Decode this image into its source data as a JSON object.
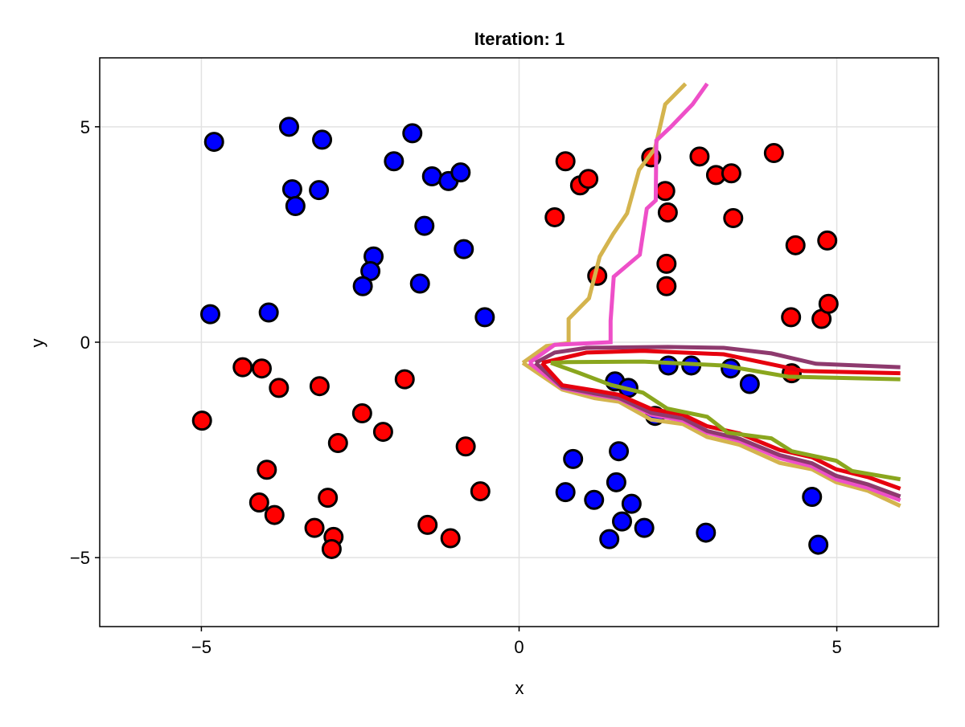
{
  "chart_data": {
    "type": "scatter",
    "title": "Iteration: 1",
    "xlabel": "x",
    "ylabel": "y",
    "xlim": [
      -6.6,
      6.6
    ],
    "ylim": [
      -6.6,
      6.6
    ],
    "xticks": [
      {
        "v": -5,
        "label": "−5"
      },
      {
        "v": 0,
        "label": "0"
      },
      {
        "v": 5,
        "label": "5"
      }
    ],
    "yticks": [
      {
        "v": -5,
        "label": "−5"
      },
      {
        "v": 0,
        "label": "0"
      },
      {
        "v": 5,
        "label": "5"
      }
    ],
    "grid": true,
    "point_series": [
      {
        "color": "#0000ff",
        "points": [
          [
            -4.8,
            4.65
          ],
          [
            -3.62,
            5.0
          ],
          [
            -3.1,
            4.7
          ],
          [
            -1.68,
            4.85
          ],
          [
            -1.97,
            4.2
          ],
          [
            -3.57,
            3.55
          ],
          [
            -3.52,
            3.16
          ],
          [
            -3.15,
            3.53
          ],
          [
            -1.37,
            3.85
          ],
          [
            -1.11,
            3.74
          ],
          [
            -0.92,
            3.94
          ],
          [
            -1.49,
            2.7
          ],
          [
            -2.29,
            1.99
          ],
          [
            -2.34,
            1.65
          ],
          [
            -2.46,
            1.3
          ],
          [
            -1.56,
            1.36
          ],
          [
            -0.87,
            2.16
          ],
          [
            -4.86,
            0.65
          ],
          [
            -3.94,
            0.69
          ],
          [
            -0.54,
            0.58
          ],
          [
            2.35,
            -0.54
          ],
          [
            2.71,
            -0.54
          ],
          [
            3.33,
            -0.61
          ],
          [
            3.63,
            -0.97
          ],
          [
            1.51,
            -0.91
          ],
          [
            1.72,
            -1.06
          ],
          [
            2.14,
            -1.71
          ],
          [
            0.85,
            -2.71
          ],
          [
            1.57,
            -2.53
          ],
          [
            0.73,
            -3.48
          ],
          [
            1.18,
            -3.66
          ],
          [
            1.53,
            -3.25
          ],
          [
            1.77,
            -3.75
          ],
          [
            1.62,
            -4.16
          ],
          [
            1.42,
            -4.57
          ],
          [
            1.97,
            -4.31
          ],
          [
            2.94,
            -4.42
          ],
          [
            4.61,
            -3.59
          ],
          [
            4.71,
            -4.7
          ]
        ]
      },
      {
        "color": "#ff0000",
        "points": [
          [
            0.73,
            4.2
          ],
          [
            0.96,
            3.64
          ],
          [
            1.09,
            3.79
          ],
          [
            0.56,
            2.9
          ],
          [
            2.08,
            4.29
          ],
          [
            2.3,
            3.51
          ],
          [
            2.34,
            3.01
          ],
          [
            2.32,
            1.82
          ],
          [
            2.32,
            1.3
          ],
          [
            2.84,
            4.31
          ],
          [
            3.1,
            3.88
          ],
          [
            3.34,
            3.92
          ],
          [
            4.01,
            4.39
          ],
          [
            3.37,
            2.88
          ],
          [
            4.35,
            2.25
          ],
          [
            4.85,
            2.36
          ],
          [
            1.23,
            1.54
          ],
          [
            4.28,
            0.58
          ],
          [
            4.76,
            0.54
          ],
          [
            4.87,
            0.89
          ],
          [
            4.29,
            -0.72
          ],
          [
            -4.35,
            -0.58
          ],
          [
            -4.05,
            -0.61
          ],
          [
            -3.78,
            -1.06
          ],
          [
            -3.14,
            -1.02
          ],
          [
            -4.99,
            -1.82
          ],
          [
            -1.8,
            -0.86
          ],
          [
            -2.47,
            -1.65
          ],
          [
            -2.14,
            -2.08
          ],
          [
            -2.85,
            -2.34
          ],
          [
            -3.97,
            -2.96
          ],
          [
            -0.84,
            -2.42
          ],
          [
            -0.61,
            -3.46
          ],
          [
            -4.09,
            -3.72
          ],
          [
            -3.01,
            -3.61
          ],
          [
            -3.85,
            -4.01
          ],
          [
            -3.22,
            -4.31
          ],
          [
            -2.92,
            -4.52
          ],
          [
            -2.95,
            -4.8
          ],
          [
            -1.44,
            -4.24
          ],
          [
            -1.08,
            -4.55
          ]
        ]
      }
    ],
    "line_series": [
      {
        "color": "#d4b44e",
        "paths": [
          {
            "x": [
              0.06,
              0.43,
              0.78,
              0.78,
              1.1,
              1.27,
              1.48,
              1.7,
              1.89,
              2.14,
              2.3,
              2.62
            ],
            "y": [
              -0.48,
              -0.09,
              -0.02,
              0.54,
              1.02,
              1.99,
              2.51,
              2.99,
              4.0,
              4.5,
              5.52,
              6.0
            ]
          },
          {
            "x": [
              0.06,
              0.68,
              1.19,
              1.57,
              2.08,
              2.58,
              2.96,
              3.47,
              4.1,
              4.61,
              4.99,
              5.49,
              6.0
            ],
            "y": [
              -0.48,
              -1.1,
              -1.3,
              -1.38,
              -1.8,
              -1.9,
              -2.2,
              -2.38,
              -2.8,
              -2.95,
              -3.25,
              -3.45,
              -3.8
            ]
          }
        ]
      },
      {
        "color": "#ee4fc8",
        "paths": [
          {
            "x": [
              0.16,
              0.56,
              1.44,
              1.44,
              1.49,
              1.9,
              2.01,
              2.15,
              2.16,
              2.39,
              2.73,
              2.96
            ],
            "y": [
              -0.48,
              -0.06,
              0.0,
              0.5,
              1.52,
              2.03,
              3.1,
              3.29,
              4.68,
              5.0,
              5.52,
              6.0
            ]
          },
          {
            "x": [
              0.16,
              0.68,
              1.19,
              1.57,
              2.08,
              2.58,
              2.96,
              3.47,
              4.1,
              4.61,
              4.99,
              5.49,
              6.0
            ],
            "y": [
              -0.48,
              -1.06,
              -1.22,
              -1.31,
              -1.68,
              -1.82,
              -2.1,
              -2.29,
              -2.69,
              -2.88,
              -3.18,
              -3.38,
              -3.67
            ]
          }
        ]
      },
      {
        "color": "#8e3a6e",
        "paths": [
          {
            "x": [
              0.26,
              0.56,
              1.06,
              2.34,
              3.22,
              3.97,
              4.67,
              6.0
            ],
            "y": [
              -0.48,
              -0.24,
              -0.13,
              -0.11,
              -0.13,
              -0.26,
              -0.5,
              -0.58
            ]
          },
          {
            "x": [
              0.26,
              0.68,
              1.19,
              1.57,
              2.08,
              2.58,
              2.96,
              3.47,
              4.1,
              4.61,
              4.99,
              5.49,
              6.0
            ],
            "y": [
              -0.48,
              -1.04,
              -1.19,
              -1.29,
              -1.64,
              -1.77,
              -2.06,
              -2.24,
              -2.62,
              -2.81,
              -3.1,
              -3.3,
              -3.58
            ]
          }
        ]
      },
      {
        "color": "#e6000e",
        "paths": [
          {
            "x": [
              0.36,
              1.06,
              1.95,
              3.22,
              4.48,
              6.0
            ],
            "y": [
              -0.48,
              -0.24,
              -0.2,
              -0.28,
              -0.67,
              -0.72
            ]
          },
          {
            "x": [
              0.36,
              0.68,
              1.19,
              1.57,
              2.08,
              2.58,
              2.96,
              3.47,
              4.1,
              4.61,
              4.99,
              5.49,
              6.0
            ],
            "y": [
              -0.48,
              -1.0,
              -1.12,
              -1.22,
              -1.55,
              -1.68,
              -1.95,
              -2.12,
              -2.5,
              -2.67,
              -2.95,
              -3.13,
              -3.4
            ]
          }
        ]
      },
      {
        "color": "#8aa61e",
        "paths": [
          {
            "x": [
              0.5,
              0.76,
              1.95,
              3.22,
              4.23,
              6.0
            ],
            "y": [
              -0.48,
              -0.46,
              -0.45,
              -0.54,
              -0.8,
              -0.86
            ]
          },
          {
            "x": [
              0.5,
              0.94,
              1.44,
              1.95,
              2.33,
              2.96,
              3.28,
              3.97,
              4.29,
              4.99,
              5.24,
              6.0
            ],
            "y": [
              -0.48,
              -0.71,
              -0.99,
              -1.17,
              -1.54,
              -1.73,
              -2.1,
              -2.23,
              -2.53,
              -2.75,
              -2.99,
              -3.18
            ]
          }
        ]
      }
    ]
  }
}
